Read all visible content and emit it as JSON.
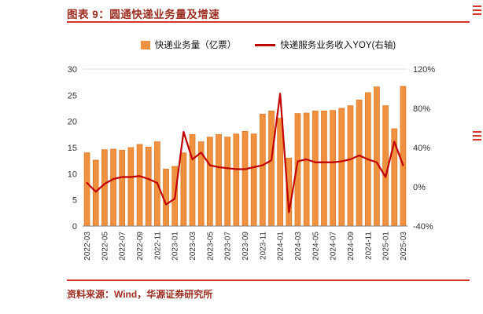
{
  "header": {
    "title": "图表 9：圆通快递业务量及增速"
  },
  "legend": {
    "bar_label": "快递业务量（亿票）",
    "line_label": "快递服务业务收入YOY(右轴)"
  },
  "footer": {
    "source": "资料来源：Wind，华源证券研究所"
  },
  "colors": {
    "bar": "#F0913F",
    "bar_stroke": "#DE7A26",
    "line": "#C00000",
    "accent_red": "#D7372B",
    "title_text": "#9C2D21",
    "axis_text": "#333333"
  },
  "chart_data": {
    "type": "bar+line",
    "title": "圆通快递业务量及增速",
    "legend_position": "top-center",
    "grid": "none",
    "x": [
      "2022-03",
      "2022-04",
      "2022-05",
      "2022-06",
      "2022-07",
      "2022-08",
      "2022-09",
      "2022-10",
      "2022-11",
      "2022-12",
      "2023-01",
      "2023-02",
      "2023-03",
      "2023-04",
      "2023-05",
      "2023-06",
      "2023-07",
      "2023-08",
      "2023-09",
      "2023-10",
      "2023-11",
      "2023-12",
      "2024-01",
      "2024-02",
      "2024-03",
      "2024-04",
      "2024-05",
      "2024-06",
      "2024-07",
      "2024-08",
      "2024-09",
      "2024-10",
      "2024-11",
      "2024-12",
      "2025-01",
      "2025-02",
      "2025-03"
    ],
    "x_tick_every": 2,
    "series": [
      {
        "name": "快递业务量（亿票）",
        "type": "bar",
        "axis": "left",
        "unit": "亿票",
        "values": [
          14.0,
          12.6,
          14.6,
          14.7,
          14.5,
          15.0,
          15.6,
          15.1,
          16.1,
          10.9,
          11.4,
          14.0,
          17.5,
          16.1,
          17.0,
          17.5,
          17.0,
          17.6,
          18.1,
          17.6,
          21.4,
          22.0,
          20.6,
          13.0,
          21.5,
          21.6,
          22.0,
          22.0,
          22.1,
          22.5,
          23.0,
          24.1,
          25.5,
          26.6,
          23.0,
          18.6,
          26.7
        ]
      },
      {
        "name": "快递服务业务收入YOY(右轴)",
        "type": "line",
        "axis": "right",
        "unit": "%",
        "values": [
          4,
          -5,
          3,
          8,
          10,
          10,
          11,
          8,
          4,
          -18,
          -12,
          56,
          28,
          35,
          22,
          20,
          19,
          18,
          18,
          20,
          22,
          27,
          95,
          -26,
          26,
          28,
          25,
          25,
          25,
          26,
          28,
          32,
          28,
          25,
          10,
          46,
          22
        ]
      }
    ],
    "left_axis": {
      "min": 0,
      "max": 30,
      "ticks": [
        0,
        5,
        10,
        15,
        20,
        25,
        30
      ]
    },
    "right_axis": {
      "min": -40,
      "max": 120,
      "tick_values": [
        -40,
        0,
        40,
        80,
        120
      ],
      "tick_labels": [
        "-40%",
        "0%",
        "40%",
        "80%",
        "120%"
      ]
    }
  }
}
